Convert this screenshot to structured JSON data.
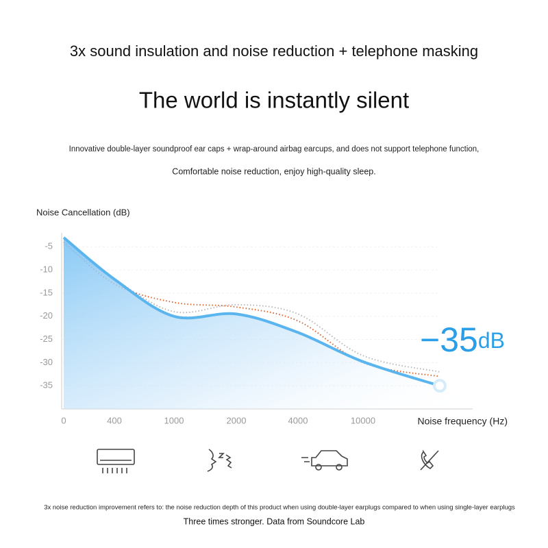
{
  "header": {
    "title": "3x sound insulation and noise reduction + telephone masking",
    "headline": "The world is instantly silent",
    "description": [
      "Innovative double-layer soundproof ear caps + wrap-around airbag earcups, and does not support telephone function,",
      "Comfortable noise reduction, enjoy high-quality sleep."
    ]
  },
  "chart_data": {
    "type": "line",
    "y_label": "Noise Cancellation (dB)",
    "x_label": "Noise frequency (Hz)",
    "categories": [
      "0",
      "400",
      "1000",
      "2000",
      "4000",
      "10000",
      null
    ],
    "series": [
      {
        "color": "#5ab4ee",
        "values": [
          -3,
          -12,
          -20,
          -19.5,
          -23.5,
          -29.8,
          -35
        ]
      },
      {
        "color": "#e0622a",
        "values": [
          -4,
          -13,
          -17,
          -18,
          -21,
          -30,
          -33
        ]
      },
      {
        "color": "#b8b8b8",
        "values": [
          -4.5,
          -12,
          -19,
          -17.5,
          -19.5,
          -28.5,
          -32
        ]
      }
    ],
    "ylim": [
      -40,
      -2
    ],
    "yticks": [
      -5,
      -10,
      -15,
      -20,
      -25,
      -30,
      -35
    ],
    "annotation": "−35",
    "annotation_unit": "dB"
  },
  "footer": {
    "note": "3x noise reduction improvement refers to: the noise reduction depth of this product when using double-layer earplugs compared to when using single-layer earplugs",
    "source": "Three times stronger. Data from Soundcore Lab"
  }
}
